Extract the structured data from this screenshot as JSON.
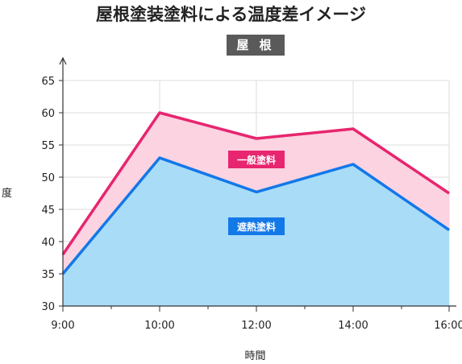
{
  "title": "屋根塗装塗料による温度差イメージ",
  "badge": "屋 根",
  "chart_data": {
    "type": "area",
    "title": "屋根塗装塗料による温度差イメージ",
    "xlabel": "時間",
    "ylabel": "度",
    "x": [
      "9:00",
      "10:00",
      "12:00",
      "14:00",
      "16:00"
    ],
    "ylim": [
      30,
      65
    ],
    "yticks": [
      30,
      35,
      40,
      45,
      50,
      55,
      60,
      65
    ],
    "grid": true,
    "series": [
      {
        "name": "一般塗料",
        "values": [
          38,
          60,
          56,
          57.5,
          47.5
        ],
        "color": "#e8256f",
        "fill": "#fbd3e1"
      },
      {
        "name": "遮熱塗料",
        "values": [
          35,
          53,
          47.7,
          52,
          41.8
        ],
        "color": "#1378e8",
        "fill": "#a9dcf7"
      }
    ]
  }
}
